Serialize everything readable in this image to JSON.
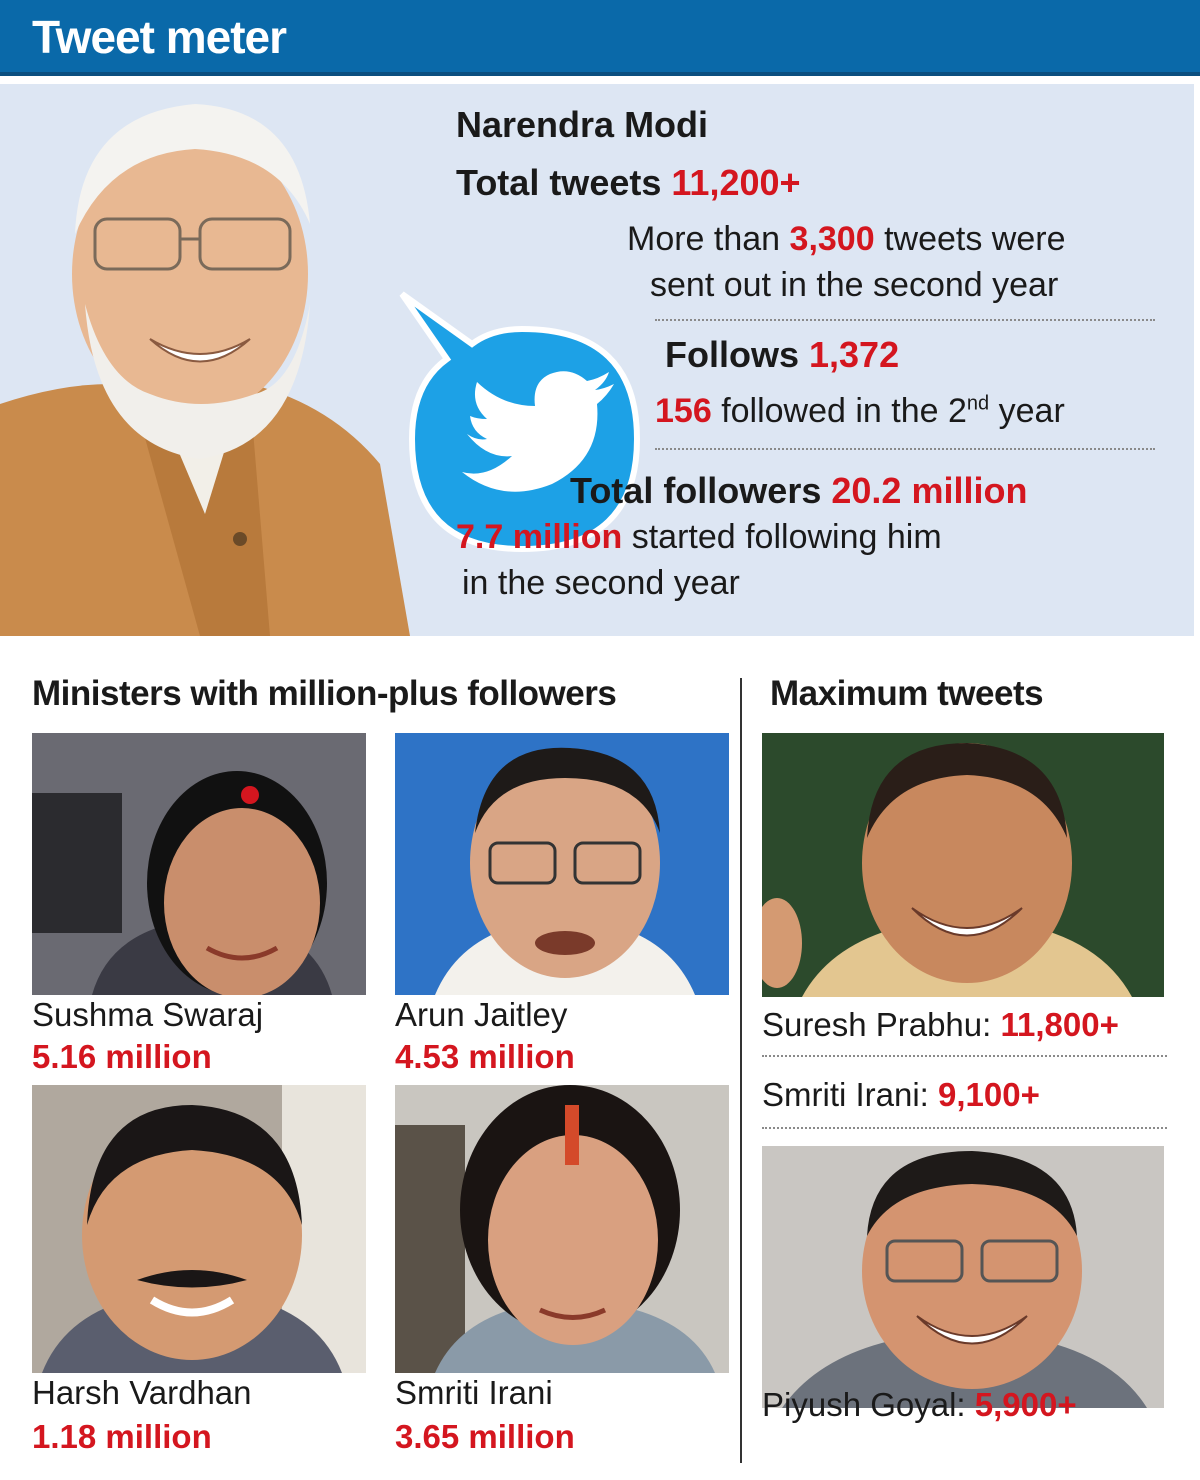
{
  "header": {
    "title": "Tweet meter"
  },
  "modi": {
    "name": "Narendra Modi",
    "total_tweets_label": "Total tweets",
    "total_tweets_value": "11,200+",
    "more_than": "More than",
    "tweets_second_year_value": "3,300",
    "tweets_were": "tweets were",
    "sent_out": "sent out in the second year",
    "follows_label": "Follows",
    "follows_value": "1,372",
    "followed_second_value": "156",
    "followed_in_the": "followed in the 2",
    "followed_sup": "nd",
    "followed_year": "year",
    "total_followers_label": "Total followers",
    "total_followers_value": "20.2 million",
    "new_followers_value": "7.7 million",
    "started_following": "started following him",
    "in_second_year": "in the second year"
  },
  "ministers": {
    "title": "Ministers with million-plus followers",
    "items": [
      {
        "name": "Sushma Swaraj",
        "followers": "5.16 million"
      },
      {
        "name": "Arun Jaitley",
        "followers": "4.53 million"
      },
      {
        "name": "Harsh Vardhan",
        "followers": "1.18 million"
      },
      {
        "name": "Smriti Irani",
        "followers": "3.65 million"
      }
    ]
  },
  "max_tweets": {
    "title": "Maximum tweets",
    "items": [
      {
        "name": "Suresh Prabhu:",
        "tweets": "11,800+"
      },
      {
        "name": "Smriti Irani:",
        "tweets": "9,100+"
      },
      {
        "name": "Piyush Goyal:",
        "tweets": "5,900+"
      }
    ]
  },
  "colors": {
    "header": "#0a69a9",
    "accent": "#d4161f",
    "hero_bg": "#dde6f3",
    "twitter": "#1da1e6"
  }
}
